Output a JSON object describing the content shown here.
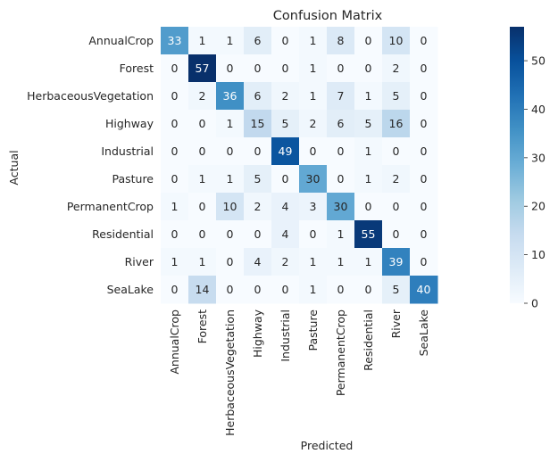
{
  "chart_data": {
    "type": "heatmap",
    "title": "Confusion Matrix",
    "xlabel": "Predicted",
    "ylabel": "Actual",
    "row_labels": [
      "AnnualCrop",
      "Forest",
      "HerbaceousVegetation",
      "Highway",
      "Industrial",
      "Pasture",
      "PermanentCrop",
      "Residential",
      "River",
      "SeaLake"
    ],
    "col_labels": [
      "AnnualCrop",
      "Forest",
      "HerbaceousVegetation",
      "Highway",
      "Industrial",
      "Pasture",
      "PermanentCrop",
      "Residential",
      "River",
      "SeaLake"
    ],
    "values": [
      [
        33,
        1,
        1,
        6,
        0,
        1,
        8,
        0,
        10,
        0
      ],
      [
        0,
        57,
        0,
        0,
        0,
        1,
        0,
        0,
        2,
        0
      ],
      [
        0,
        2,
        36,
        6,
        2,
        1,
        7,
        1,
        5,
        0
      ],
      [
        0,
        0,
        1,
        15,
        5,
        2,
        6,
        5,
        16,
        0
      ],
      [
        0,
        0,
        0,
        0,
        49,
        0,
        0,
        1,
        0,
        0
      ],
      [
        0,
        1,
        1,
        5,
        0,
        30,
        0,
        1,
        2,
        0
      ],
      [
        1,
        0,
        10,
        2,
        4,
        3,
        30,
        0,
        0,
        0
      ],
      [
        0,
        0,
        0,
        0,
        4,
        0,
        1,
        55,
        0,
        0
      ],
      [
        1,
        1,
        0,
        4,
        2,
        1,
        1,
        1,
        39,
        0
      ],
      [
        0,
        14,
        0,
        0,
        0,
        1,
        0,
        0,
        5,
        40
      ]
    ],
    "colormap": "Blues",
    "color_range": [
      0,
      57
    ],
    "colorbar_ticks": [
      0,
      10,
      20,
      30,
      40,
      50
    ]
  }
}
